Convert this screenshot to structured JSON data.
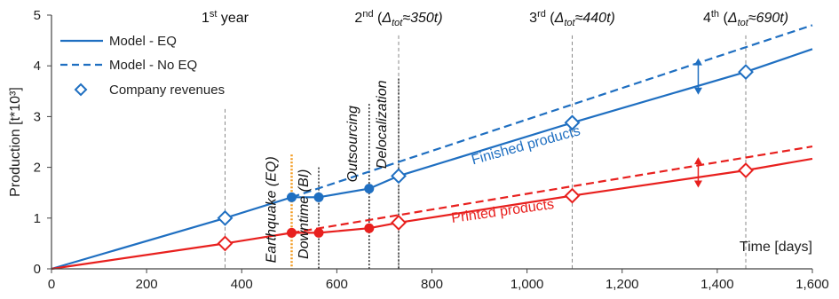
{
  "chart_data": {
    "type": "line",
    "xlabel": "Time [days]",
    "ylabel": "Production [t*10³]",
    "xlim": [
      0,
      1600
    ],
    "ylim": [
      0,
      5
    ],
    "x_ticks": [
      0,
      200,
      400,
      600,
      800,
      1000,
      1200,
      1400,
      1600
    ],
    "x_tick_labels": [
      "0",
      "200",
      "400",
      "600",
      "800",
      "1,000",
      "1,200",
      "1,400",
      "1,600"
    ],
    "y_ticks": [
      0,
      1,
      2,
      3,
      4,
      5
    ],
    "y_tick_labels": [
      "0",
      "1",
      "2",
      "3",
      "4",
      "5"
    ],
    "grid": false,
    "legend_position": "top-left",
    "legend": [
      {
        "label": "Model - EQ",
        "style": "solid"
      },
      {
        "label": "Model - No EQ",
        "style": "dashed"
      },
      {
        "label": "Company revenues",
        "style": "diamond"
      }
    ],
    "colors": {
      "finished": "#1f6fc1",
      "printed": "#e8201e",
      "earthquake": "#f39a1e",
      "event": "#333333",
      "year": "#888888"
    },
    "series": [
      {
        "group": "finished",
        "model": "EQ",
        "style": "solid",
        "x": [
          0,
          365,
          505,
          562,
          668,
          730,
          1095,
          1460,
          1600
        ],
        "y": [
          0,
          1.0,
          1.41,
          1.41,
          1.58,
          1.83,
          2.88,
          3.88,
          4.33
        ]
      },
      {
        "group": "finished",
        "model": "No EQ",
        "style": "dashed",
        "x": [
          505,
          1600
        ],
        "y": [
          1.41,
          4.8
        ]
      },
      {
        "group": "printed",
        "model": "EQ",
        "style": "solid",
        "x": [
          0,
          365,
          505,
          562,
          668,
          730,
          1095,
          1460,
          1600
        ],
        "y": [
          0,
          0.5,
          0.71,
          0.71,
          0.8,
          0.91,
          1.44,
          1.94,
          2.17
        ]
      },
      {
        "group": "printed",
        "model": "No EQ",
        "style": "dashed",
        "x": [
          505,
          1600
        ],
        "y": [
          0.71,
          2.41
        ]
      }
    ],
    "revenues": {
      "finished": {
        "x": [
          365,
          730,
          1095,
          1460
        ],
        "y": [
          1.0,
          1.83,
          2.88,
          3.88
        ]
      },
      "printed": {
        "x": [
          365,
          730,
          1095,
          1460
        ],
        "y": [
          0.5,
          0.91,
          1.44,
          1.94
        ]
      }
    },
    "filled_points": {
      "finished": {
        "x": [
          505,
          562,
          668
        ],
        "y": [
          1.41,
          1.41,
          1.58
        ]
      },
      "printed": {
        "x": [
          505,
          562,
          668
        ],
        "y": [
          0.71,
          0.71,
          0.8
        ]
      }
    },
    "event_lines": [
      {
        "key": "earthquake",
        "x": 505,
        "y_top": 2.25,
        "label": "Earthquake (EQ)"
      },
      {
        "key": "downtime",
        "x": 562,
        "y_top": 2.0,
        "label": "Downtime (BI)"
      },
      {
        "key": "outsourcing",
        "x": 668,
        "y_top": 3.25,
        "label": "Outsourcing"
      },
      {
        "key": "delocalization",
        "x": 730,
        "y_top": 3.75,
        "label": "Delocalization"
      }
    ],
    "year_lines": [
      {
        "x": 365,
        "y_top": 3.15,
        "ordinal": "1",
        "suffix": "st",
        "rest": " year",
        "delta": ""
      },
      {
        "x": 730,
        "y_top": 4.6,
        "ordinal": "2",
        "suffix": "nd",
        "rest": " (",
        "delta": "≈350t)"
      },
      {
        "x": 1095,
        "y_top": 4.6,
        "ordinal": "3",
        "suffix": "rd",
        "rest": " (",
        "delta": "≈440t)"
      },
      {
        "x": 1460,
        "y_top": 4.6,
        "ordinal": "4",
        "suffix": "th",
        "rest": " (",
        "delta": "≈690t)"
      }
    ],
    "delta_symbol": "Δ",
    "delta_sub": "tot",
    "delta_arrows": [
      {
        "group": "finished",
        "x": 1360,
        "y_low": 3.43,
        "y_high": 4.15
      },
      {
        "group": "printed",
        "x": 1360,
        "y_low": 1.6,
        "y_high": 2.2
      }
    ],
    "curve_labels": [
      {
        "group": "finished",
        "text": "Finished products",
        "x": 1000,
        "y": 2.35
      },
      {
        "group": "printed",
        "text": "Printed products",
        "x": 950,
        "y": 1.05
      }
    ]
  }
}
